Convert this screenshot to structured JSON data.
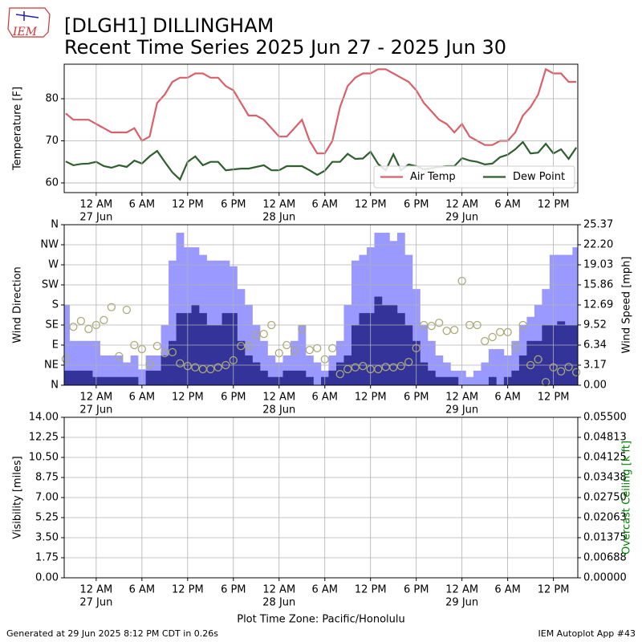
{
  "title": "[DLGH1] DILLINGHAM",
  "subtitle": "Recent Time Series 2025 Jun 27 - 2025 Jun 30",
  "logo": "IEM",
  "footer_left": "Generated at 29 Jun 2025 8:12 PM CDT in 0.26s",
  "footer_right": "IEM Autoplot App #43",
  "chart_data": [
    {
      "type": "line",
      "ylabel": "Temperature [F]",
      "grid": true,
      "legend": "lower right",
      "x": [
        -4,
        -3,
        -2,
        -1,
        0,
        1,
        2,
        3,
        4,
        5,
        6,
        7,
        8,
        9,
        10,
        11,
        12,
        13,
        14,
        15,
        16,
        17,
        18,
        19,
        20,
        21,
        22,
        23,
        24,
        25,
        26,
        27,
        28,
        29,
        30,
        31,
        32,
        33,
        34,
        35,
        36,
        37,
        38,
        39,
        40,
        41,
        42,
        43,
        44,
        45,
        46,
        47,
        48,
        49,
        50,
        51,
        52,
        53,
        54,
        55,
        56,
        57,
        58,
        59,
        60,
        61,
        62,
        63
      ],
      "xlim": [
        -4.2,
        63.2
      ],
      "xticks": [
        {
          "value": 0,
          "label": "12 AM",
          "date": "27 Jun"
        },
        {
          "value": 6,
          "label": "6 AM"
        },
        {
          "value": 12,
          "label": "12 PM"
        },
        {
          "value": 18,
          "label": "6 PM"
        },
        {
          "value": 24,
          "label": "12 AM",
          "date": "28 Jun"
        },
        {
          "value": 30,
          "label": "6 AM"
        },
        {
          "value": 36,
          "label": "12 PM"
        },
        {
          "value": 42,
          "label": "6 PM"
        },
        {
          "value": 48,
          "label": "12 AM",
          "date": "29 Jun"
        },
        {
          "value": 54,
          "label": "6 AM"
        },
        {
          "value": 60,
          "label": "12 PM"
        }
      ],
      "ylim": [
        57.7,
        88.2
      ],
      "yticks": [
        60,
        70,
        80
      ],
      "series": [
        {
          "name": "Air Temp",
          "color": "#d9606a",
          "values": [
            76.5,
            75,
            75,
            75,
            74,
            73,
            72,
            72,
            72,
            73,
            70,
            71,
            79,
            81,
            84,
            85,
            85,
            86,
            86,
            85,
            85,
            83,
            82,
            79,
            76,
            76,
            75,
            73,
            71,
            71,
            73,
            75,
            70,
            67,
            67,
            70,
            78,
            83,
            85,
            86,
            86,
            87,
            87,
            86,
            85,
            84,
            82,
            79,
            77,
            75,
            74,
            72,
            74,
            71,
            70,
            69,
            69,
            70,
            70,
            72,
            76,
            78,
            81,
            87,
            86,
            86,
            84,
            84
          ]
        },
        {
          "name": "Dew Point",
          "color": "#2f5f2f",
          "values": [
            65.1,
            64.2,
            64.5,
            64.6,
            65,
            64,
            63.6,
            64.2,
            63.8,
            65.3,
            64.6,
            66.3,
            67.6,
            65,
            62.5,
            60.8,
            65,
            66.3,
            64.2,
            65,
            65,
            63,
            63.2,
            63.4,
            63.4,
            63.8,
            64.2,
            63,
            63,
            64,
            64,
            64,
            63,
            61.9,
            62.9,
            65,
            65,
            66.9,
            65.7,
            65.8,
            67.4,
            64.5,
            63,
            66.8,
            63,
            64.4,
            64,
            63.2,
            63.5,
            63.8,
            64,
            64,
            65.9,
            65.3,
            65,
            64.4,
            64.6,
            66.1,
            66.7,
            68,
            69.7,
            67,
            67.2,
            69.3,
            67,
            68,
            65.7,
            68.4
          ]
        }
      ]
    },
    {
      "type": "bar",
      "ylabel": "Wind Direction",
      "y2label": "Wind Speed [mph]",
      "grid": true,
      "x": [
        -4,
        -3,
        -2,
        -1,
        0,
        1,
        2,
        3,
        4,
        5,
        6,
        7,
        8,
        9,
        10,
        11,
        12,
        13,
        14,
        15,
        16,
        17,
        18,
        19,
        20,
        21,
        22,
        23,
        24,
        25,
        26,
        27,
        28,
        29,
        30,
        31,
        32,
        33,
        34,
        35,
        36,
        37,
        38,
        39,
        40,
        41,
        42,
        43,
        44,
        45,
        46,
        47,
        48,
        49,
        50,
        51,
        52,
        53,
        54,
        55,
        56,
        57,
        58,
        59,
        60,
        61,
        62,
        63
      ],
      "xlim": [
        -4.2,
        63.2
      ],
      "xticks": [
        {
          "value": 0,
          "label": "12 AM",
          "date": "27 Jun"
        },
        {
          "value": 6,
          "label": "6 AM"
        },
        {
          "value": 12,
          "label": "12 PM"
        },
        {
          "value": 18,
          "label": "6 PM"
        },
        {
          "value": 24,
          "label": "12 AM",
          "date": "28 Jun"
        },
        {
          "value": 30,
          "label": "6 AM"
        },
        {
          "value": 36,
          "label": "12 PM"
        },
        {
          "value": 42,
          "label": "6 PM"
        },
        {
          "value": 48,
          "label": "12 AM",
          "date": "29 Jun"
        },
        {
          "value": 54,
          "label": "6 AM"
        },
        {
          "value": 60,
          "label": "12 PM"
        }
      ],
      "ylim": [
        0,
        360
      ],
      "yticks": [
        {
          "value": 0,
          "label": "N"
        },
        {
          "value": 45,
          "label": "NE"
        },
        {
          "value": 90,
          "label": "E"
        },
        {
          "value": 135,
          "label": "SE"
        },
        {
          "value": 180,
          "label": "S"
        },
        {
          "value": 225,
          "label": "SW"
        },
        {
          "value": 270,
          "label": "W"
        },
        {
          "value": 315,
          "label": "NW"
        },
        {
          "value": 360,
          "label": "N"
        }
      ],
      "y2lim": [
        0,
        25.37
      ],
      "y2ticks": [
        {
          "value": 0,
          "label": "0.00"
        },
        3.17,
        6.34,
        9.52,
        12.69,
        15.86,
        19.03,
        {
          "value": 22.2,
          "label": "22.20"
        },
        25.37
      ],
      "series": [
        {
          "type": "bar",
          "axis": "y2",
          "color": "#9999ff",
          "values": [
            12.7,
            7.0,
            7.0,
            7.0,
            7.0,
            4.7,
            4.7,
            4.7,
            3.6,
            4.7,
            2.5,
            4.7,
            4.7,
            9.5,
            19.7,
            24.1,
            21.8,
            21.8,
            20.6,
            19.7,
            19.7,
            19.7,
            18.8,
            15.2,
            12.7,
            9.5,
            7.0,
            4.7,
            3.6,
            4.7,
            7.0,
            9.5,
            4.7,
            3.6,
            2.3,
            4.7,
            7.0,
            12.7,
            19.7,
            20.6,
            21.8,
            24.1,
            24.1,
            22.8,
            24.1,
            20.6,
            15.2,
            9.5,
            7.0,
            4.7,
            3.6,
            2.3,
            2.3,
            1.3,
            2.3,
            3.6,
            5.7,
            5.7,
            4.7,
            7.0,
            9.5,
            10.8,
            12.7,
            15.2,
            20.6,
            20.6,
            20.6,
            21.8
          ]
        },
        {
          "type": "bar",
          "axis": "y2",
          "color": "#333399",
          "values": [
            2.3,
            2.3,
            2.3,
            2.3,
            1.3,
            1.3,
            1.3,
            1.3,
            1.3,
            1.3,
            0,
            2.3,
            2.3,
            4.7,
            7.0,
            11.4,
            11.4,
            12.7,
            11.4,
            9.5,
            9.5,
            11.4,
            11.4,
            7.0,
            4.7,
            3.6,
            2.3,
            1.3,
            1.3,
            2.3,
            2.3,
            2.3,
            1.3,
            0,
            1.3,
            2.3,
            3.6,
            4.7,
            9.5,
            11.4,
            11.4,
            14.0,
            12.7,
            12.7,
            11.4,
            9.5,
            7.0,
            3.6,
            2.3,
            1.3,
            1.3,
            1.3,
            0,
            0,
            0,
            0,
            1.3,
            0,
            1.3,
            2.3,
            4.7,
            7.0,
            7.0,
            9.5,
            9.5,
            10.1,
            9.5,
            9.5
          ]
        },
        {
          "type": "scatter",
          "color": "#aaaa77",
          "values": [
            59,
            131,
            144,
            126,
            135,
            146,
            175,
            65,
            169,
            90,
            81,
            47,
            88,
            72,
            74,
            49,
            43,
            40,
            36,
            36,
            40,
            45,
            56,
            88,
            88,
            112,
            115,
            135,
            72,
            90,
            77,
            126,
            79,
            83,
            58,
            83,
            25,
            36,
            40,
            43,
            36,
            36,
            41,
            40,
            43,
            52,
            83,
            135,
            133,
            140,
            122,
            124,
            234,
            135,
            135,
            99,
            108,
            119,
            119,
            86,
            135,
            45,
            58,
            7,
            40,
            31,
            41,
            29
          ]
        }
      ]
    },
    {
      "type": "line",
      "ylabel": "Visibility [miles]",
      "y2label": "Overcast Ceiling [k ft]",
      "y2label_color": "#008000",
      "xlabel": "Plot Time Zone: Pacific/Honolulu",
      "grid": true,
      "xlim": [
        -4.2,
        63.2
      ],
      "xticks": [
        {
          "value": 0,
          "label": "12 AM",
          "date": "27 Jun"
        },
        {
          "value": 6,
          "label": "6 AM"
        },
        {
          "value": 12,
          "label": "12 PM"
        },
        {
          "value": 18,
          "label": "6 PM"
        },
        {
          "value": 24,
          "label": "12 AM",
          "date": "28 Jun"
        },
        {
          "value": 30,
          "label": "6 AM"
        },
        {
          "value": 36,
          "label": "12 PM"
        },
        {
          "value": 42,
          "label": "6 PM"
        },
        {
          "value": 48,
          "label": "12 AM",
          "date": "29 Jun"
        },
        {
          "value": 54,
          "label": "6 AM"
        },
        {
          "value": 60,
          "label": "12 PM"
        }
      ],
      "ylim": [
        0,
        14
      ],
      "yticks": [
        {
          "value": 0,
          "label": "0.00"
        },
        1.75,
        {
          "value": 3.5,
          "label": "3.50"
        },
        5.25,
        {
          "value": 7,
          "label": "7.00"
        },
        8.75,
        {
          "value": 10.5,
          "label": "10.50"
        },
        12.25,
        {
          "value": 14,
          "label": "14.00"
        }
      ],
      "y2lim": [
        0,
        0.055
      ],
      "y2ticks": [
        {
          "value": 0,
          "label": "0.00000"
        },
        0.00688,
        0.01375,
        0.02063,
        {
          "value": 0.0275,
          "label": "0.02750"
        },
        0.03438,
        0.04125,
        0.04813,
        {
          "value": 0.055,
          "label": "0.05500"
        }
      ],
      "series": []
    }
  ]
}
